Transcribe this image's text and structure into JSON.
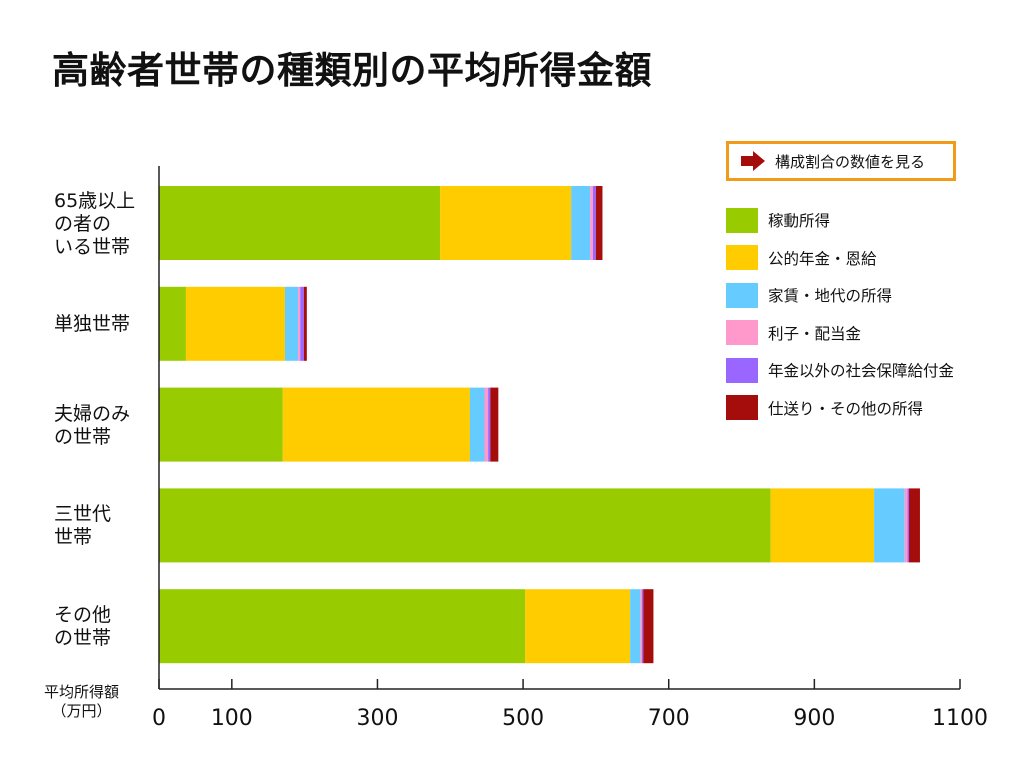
{
  "title": "高齢者世帯の種類別の平均所得金額",
  "button": {
    "label": "構成割合の数値を見る",
    "icon": "right-arrow-icon",
    "color": "#a50d0d",
    "border": "#f29a1a"
  },
  "y_unit": [
    "平均所得額",
    "（万円）"
  ],
  "chart_data": {
    "type": "bar",
    "orientation": "horizontal",
    "stacked": true,
    "title": "高齢者世帯の種類別の平均所得金額",
    "xlim": [
      0,
      1100
    ],
    "xticks": [
      0,
      100,
      300,
      500,
      700,
      900,
      1100
    ],
    "categories": [
      [
        "65歳以上",
        "の者の",
        "いる世帯"
      ],
      [
        "単独世帯"
      ],
      [
        "夫婦のみ",
        "の世帯"
      ],
      [
        "三世代",
        "世帯"
      ],
      [
        "その他",
        "の世帯"
      ]
    ],
    "series": [
      {
        "name": "稼動所得",
        "color": "#99cc00",
        "values": [
          386,
          37,
          170,
          840,
          503
        ]
      },
      {
        "name": "公的年金・恩給",
        "color": "#ffcc00",
        "values": [
          180,
          136,
          257,
          142,
          144
        ]
      },
      {
        "name": "家賃・地代の所得",
        "color": "#66ccff",
        "values": [
          26,
          18,
          20,
          42,
          14
        ]
      },
      {
        "name": "利子・配当金",
        "color": "#ff99cc",
        "values": [
          4,
          3,
          5,
          4,
          2
        ]
      },
      {
        "name": "年金以外の社会保障給付金",
        "color": "#9966ff",
        "values": [
          4,
          5,
          3,
          2,
          2
        ]
      },
      {
        "name": "仕送り・その他の所得",
        "color": "#a50d0d",
        "values": [
          9,
          4,
          11,
          15,
          14
        ]
      }
    ],
    "grid": false,
    "legend_position": "right"
  }
}
